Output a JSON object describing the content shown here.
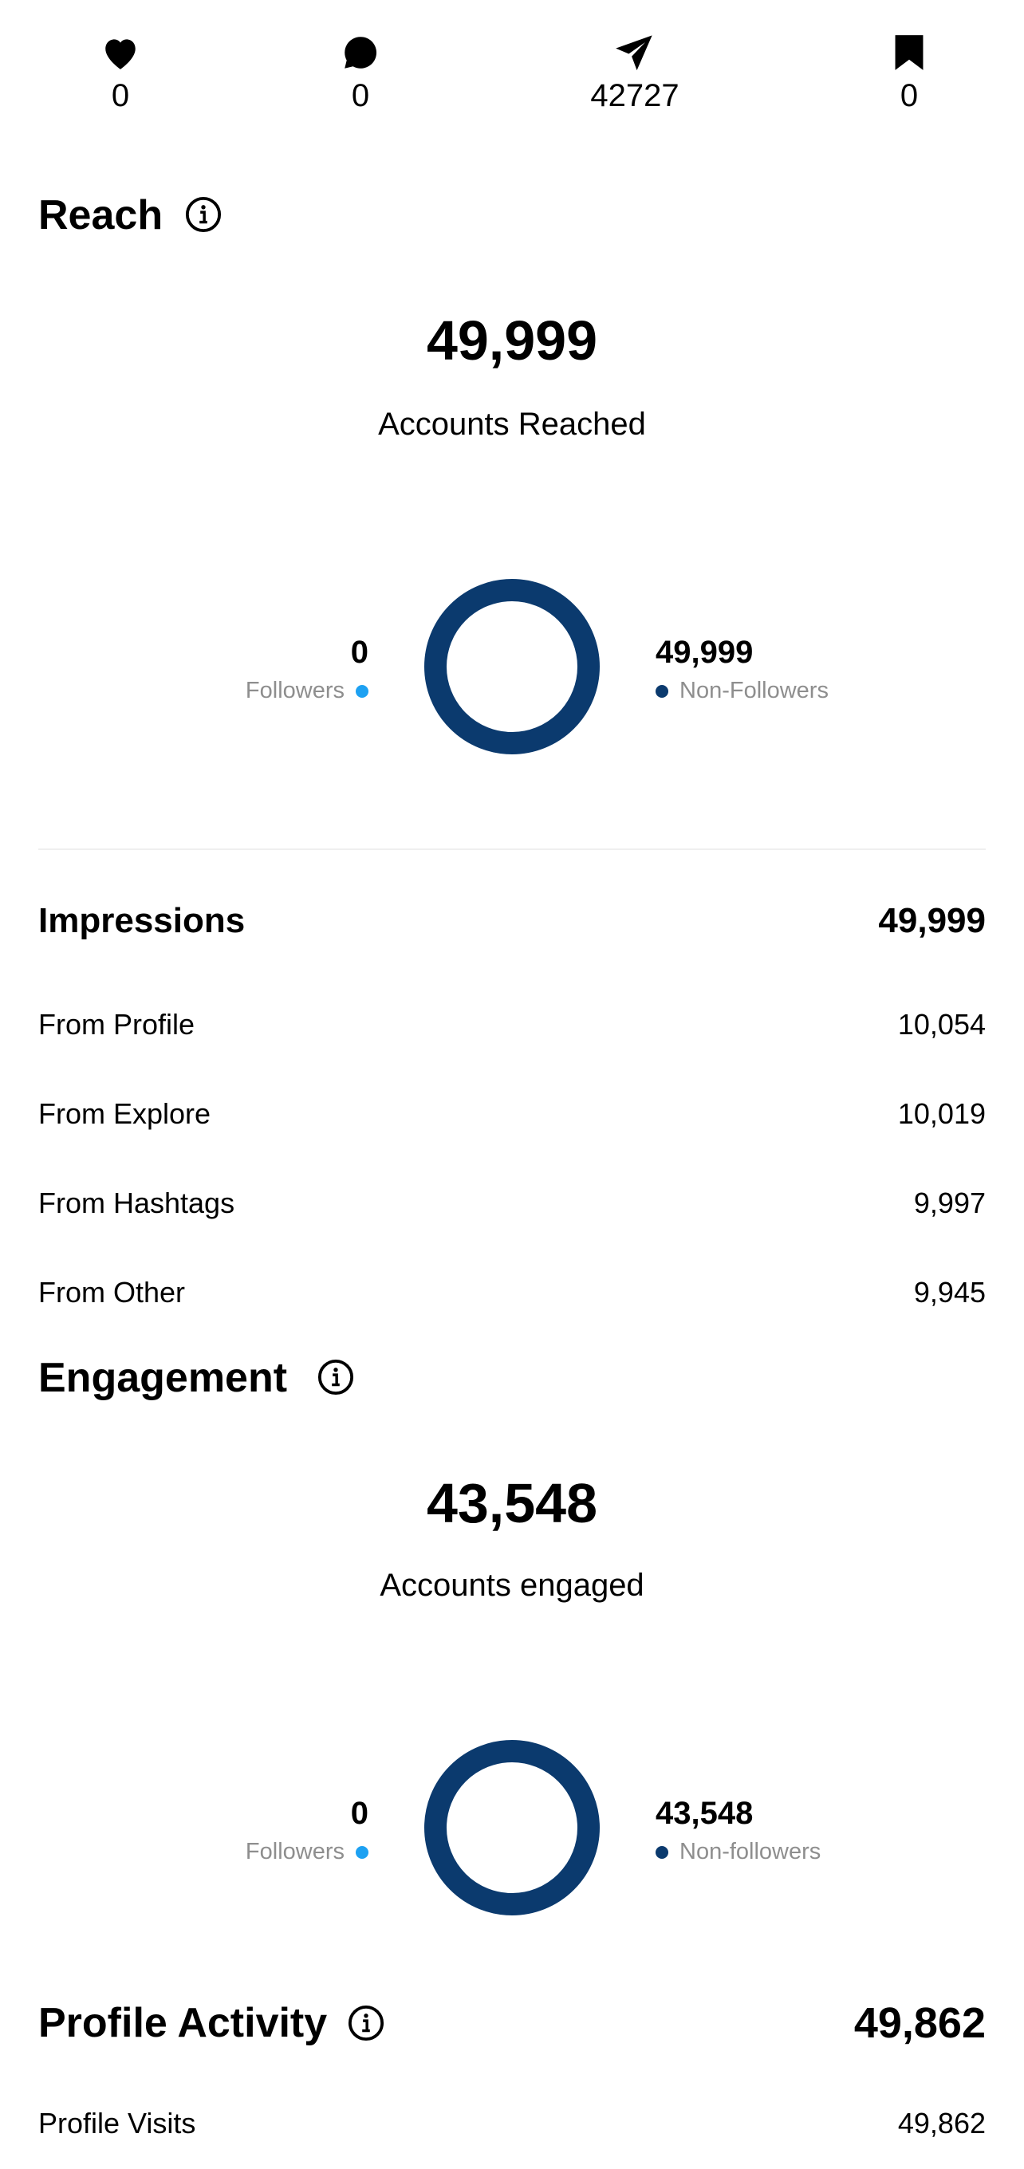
{
  "top_stats": [
    {
      "icon": "heart-icon",
      "value": "0"
    },
    {
      "icon": "comment-icon",
      "value": "0"
    },
    {
      "icon": "share-icon",
      "value": "42727"
    },
    {
      "icon": "bookmark-icon",
      "value": "0"
    }
  ],
  "reach": {
    "title": "Reach",
    "total": "49,999",
    "total_label": "Accounts Reached",
    "followers_value": "0",
    "followers_label": "Followers",
    "non_followers_value": "49,999",
    "non_followers_label": "Non-Followers",
    "colors": {
      "followers": "#1da1f2",
      "non_followers": "#0b3a6e"
    }
  },
  "impressions": {
    "title": "Impressions",
    "total": "49,999",
    "rows": [
      {
        "label": "From Profile",
        "value": "10,054"
      },
      {
        "label": "From Explore",
        "value": "10,019"
      },
      {
        "label": "From Hashtags",
        "value": "9,997"
      },
      {
        "label": "From Other",
        "value": "9,945"
      }
    ]
  },
  "engagement": {
    "title": "Engagement",
    "total": "43,548",
    "total_label": "Accounts engaged",
    "followers_value": "0",
    "followers_label": "Followers",
    "non_followers_value": "43,548",
    "non_followers_label": "Non-followers"
  },
  "profile_activity": {
    "title": "Profile Activity",
    "total": "49,862",
    "rows": [
      {
        "label": "Profile Visits",
        "value": "49,862"
      }
    ]
  }
}
